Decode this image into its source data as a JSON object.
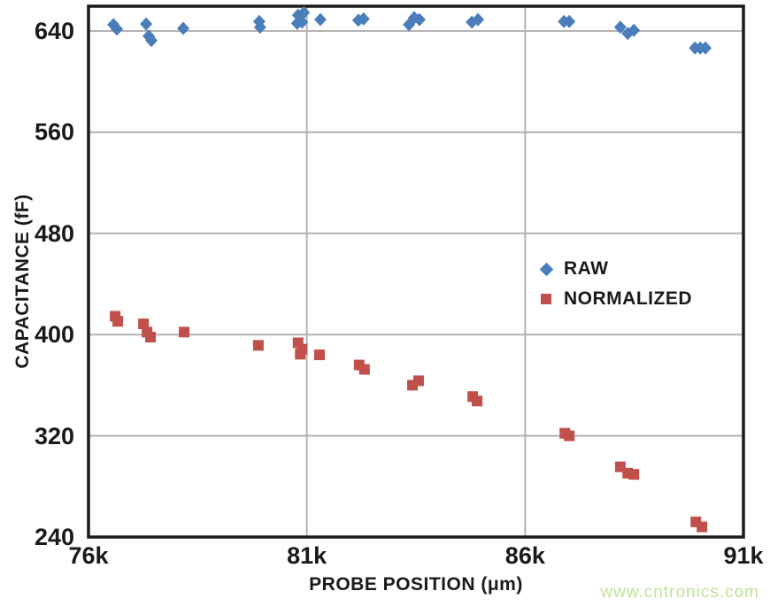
{
  "watermark": {
    "text": "www.cntronics.com",
    "color": "#bfe29a"
  },
  "chart_data": {
    "type": "scatter",
    "title": "",
    "xlabel": "PROBE POSITION (μm)",
    "ylabel": "CAPACITANCE (fF)",
    "xlim": [
      76000,
      91000
    ],
    "ylim": [
      240,
      640
    ],
    "grid": true,
    "legend_position": "middle-right",
    "axis_color": "#1a1a1a",
    "grid_color": "#b3b3b3",
    "background": "#ffffff",
    "xticks": [
      {
        "value": 76000,
        "label": "76k"
      },
      {
        "value": 81000,
        "label": "81k"
      },
      {
        "value": 86000,
        "label": "86k"
      },
      {
        "value": 91000,
        "label": "91k"
      }
    ],
    "yticks": [
      {
        "value": 240,
        "label": "240"
      },
      {
        "value": 320,
        "label": "320"
      },
      {
        "value": 400,
        "label": "400"
      },
      {
        "value": 480,
        "label": "480"
      },
      {
        "value": 560,
        "label": "560"
      },
      {
        "value": 640,
        "label": "640"
      }
    ],
    "series": [
      {
        "name": "RAW",
        "marker": "diamond",
        "color": "#4a7ebb",
        "points": [
          [
            76570,
            645
          ],
          [
            76650,
            641.5
          ],
          [
            77320,
            645.5
          ],
          [
            77380,
            636
          ],
          [
            77440,
            632.5
          ],
          [
            78170,
            642
          ],
          [
            79910,
            647.5
          ],
          [
            79930,
            643
          ],
          [
            80780,
            646
          ],
          [
            80800,
            652.5
          ],
          [
            80890,
            647
          ],
          [
            80930,
            654.5
          ],
          [
            81310,
            649
          ],
          [
            82180,
            648.5
          ],
          [
            82300,
            649.5
          ],
          [
            83340,
            645
          ],
          [
            83460,
            650.5
          ],
          [
            83580,
            649
          ],
          [
            84780,
            647
          ],
          [
            84920,
            649
          ],
          [
            86890,
            647.5
          ],
          [
            87010,
            647.5
          ],
          [
            88180,
            643
          ],
          [
            88350,
            638
          ],
          [
            88490,
            640.5
          ],
          [
            89890,
            626.5
          ],
          [
            90010,
            626.5
          ],
          [
            90130,
            626.5
          ]
        ]
      },
      {
        "name": "NORMALIZED",
        "marker": "square",
        "color": "#c2504a",
        "points": [
          [
            76610,
            414.5
          ],
          [
            76670,
            410.5
          ],
          [
            77260,
            408.5
          ],
          [
            77340,
            402
          ],
          [
            77420,
            398
          ],
          [
            78190,
            402
          ],
          [
            79890,
            391.5
          ],
          [
            80800,
            393.5
          ],
          [
            80850,
            384.5
          ],
          [
            80890,
            388.5
          ],
          [
            81290,
            384
          ],
          [
            82200,
            376
          ],
          [
            82320,
            372.5
          ],
          [
            83420,
            360
          ],
          [
            83560,
            363.5
          ],
          [
            84800,
            351
          ],
          [
            84900,
            347.5
          ],
          [
            86910,
            322
          ],
          [
            87010,
            320
          ],
          [
            88180,
            295.5
          ],
          [
            88350,
            290.5
          ],
          [
            88490,
            289.5
          ],
          [
            89910,
            252
          ],
          [
            90050,
            248
          ]
        ]
      }
    ]
  }
}
